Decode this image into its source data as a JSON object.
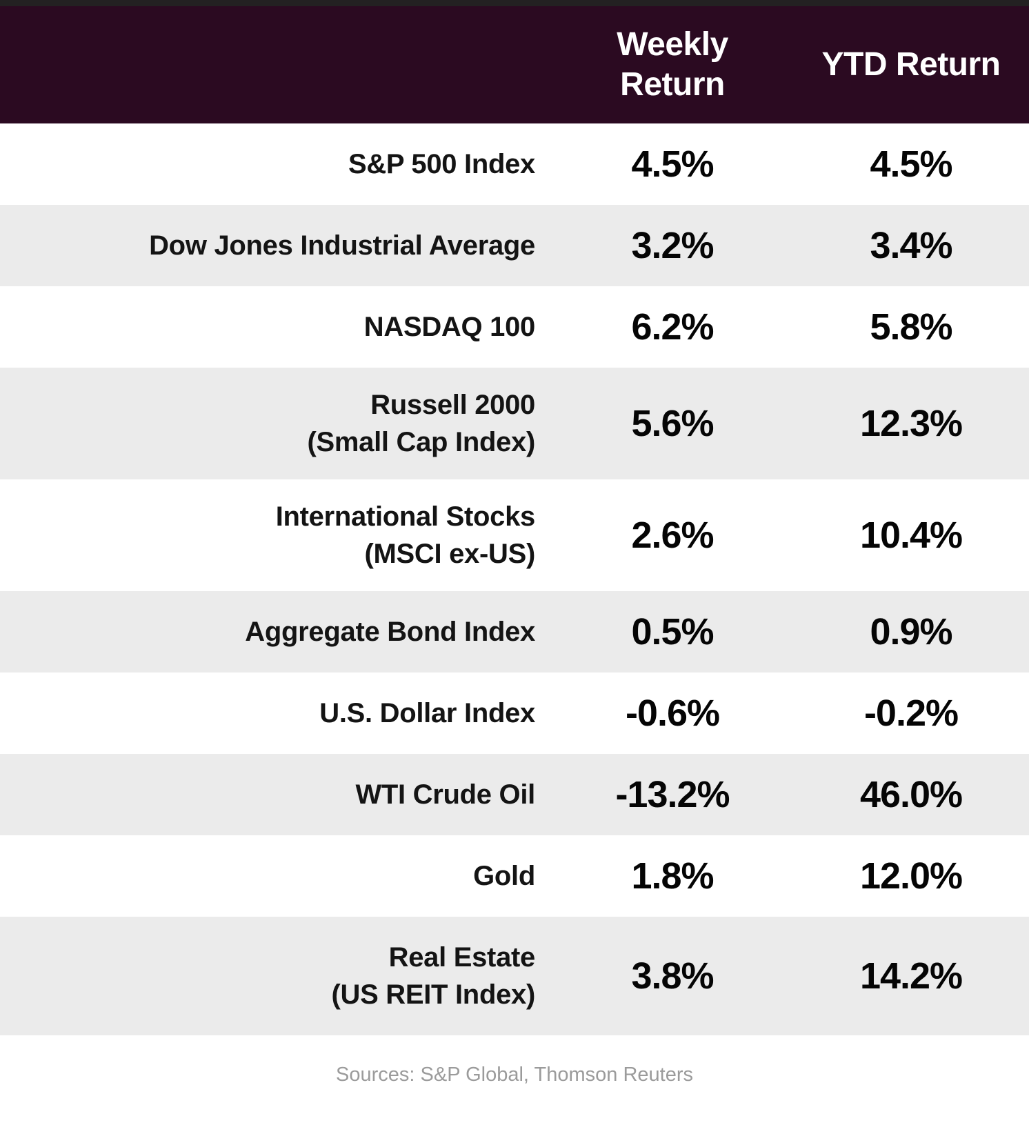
{
  "colors": {
    "top_strip": "#232122",
    "header_bg": "#2b0a21",
    "header_text": "#ffffff",
    "row_alt_bg": "#ebebeb",
    "row_bg": "#ffffff",
    "label_text": "#141414",
    "value_text": "#050505",
    "source_text": "#9b9b9b"
  },
  "header": {
    "weekly_label": "Weekly Return",
    "ytd_label": "YTD Return"
  },
  "rows": [
    {
      "label_line1": "S&P 500 Index",
      "label_line2": "",
      "weekly": "4.5%",
      "ytd": "4.5%"
    },
    {
      "label_line1": "Dow Jones Industrial Average",
      "label_line2": "",
      "weekly": "3.2%",
      "ytd": "3.4%"
    },
    {
      "label_line1": "NASDAQ 100",
      "label_line2": "",
      "weekly": "6.2%",
      "ytd": "5.8%"
    },
    {
      "label_line1": "Russell 2000",
      "label_line2": "(Small Cap Index)",
      "weekly": "5.6%",
      "ytd": "12.3%"
    },
    {
      "label_line1": "International Stocks",
      "label_line2": "(MSCI ex-US)",
      "weekly": "2.6%",
      "ytd": "10.4%"
    },
    {
      "label_line1": "Aggregate Bond Index",
      "label_line2": "",
      "weekly": "0.5%",
      "ytd": "0.9%"
    },
    {
      "label_line1": "U.S. Dollar Index",
      "label_line2": "",
      "weekly": "-0.6%",
      "ytd": "-0.2%"
    },
    {
      "label_line1": "WTI Crude Oil",
      "label_line2": "",
      "weekly": "-13.2%",
      "ytd": "46.0%"
    },
    {
      "label_line1": "Gold",
      "label_line2": "",
      "weekly": "1.8%",
      "ytd": "12.0%"
    },
    {
      "label_line1": "Real Estate",
      "label_line2": "(US REIT Index)",
      "weekly": "3.8%",
      "ytd": "14.2%"
    }
  ],
  "footer": {
    "sources": "Sources: S&P Global, Thomson Reuters"
  },
  "chart_data": {
    "type": "table",
    "title": "",
    "columns": [
      "",
      "Weekly Return",
      "YTD Return"
    ],
    "categories": [
      "S&P 500 Index",
      "Dow Jones Industrial Average",
      "NASDAQ 100",
      "Russell 2000 (Small Cap Index)",
      "International Stocks (MSCI ex-US)",
      "Aggregate Bond Index",
      "U.S. Dollar Index",
      "WTI Crude Oil",
      "Gold",
      "Real Estate (US REIT Index)"
    ],
    "series": [
      {
        "name": "Weekly Return",
        "values": [
          4.5,
          3.2,
          6.2,
          5.6,
          2.6,
          0.5,
          -0.6,
          -13.2,
          1.8,
          3.8
        ]
      },
      {
        "name": "YTD Return",
        "values": [
          4.5,
          3.4,
          5.8,
          12.3,
          10.4,
          0.9,
          -0.2,
          46.0,
          12.0,
          14.2
        ]
      }
    ],
    "value_unit": "%",
    "source": "Sources: S&P Global, Thomson Reuters"
  }
}
